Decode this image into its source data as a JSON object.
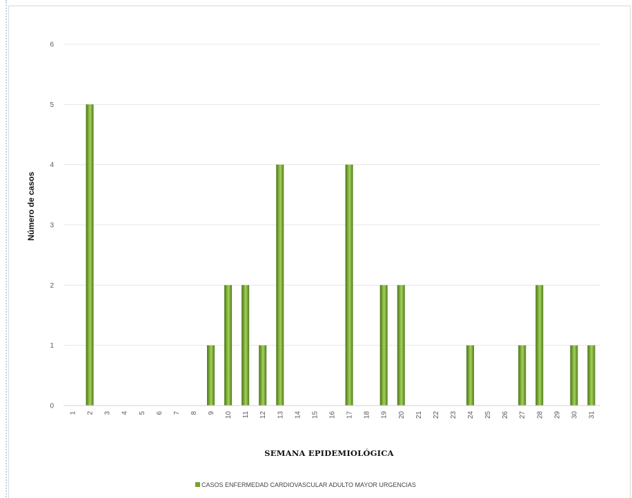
{
  "chart_data": {
    "type": "bar",
    "title": "",
    "xlabel": "SEMANA EPIDEMIOLÓGICA",
    "ylabel": "Número de casos",
    "ylim": [
      0,
      6
    ],
    "yticks": [
      0,
      1,
      2,
      3,
      4,
      5,
      6
    ],
    "grid": true,
    "legend_position": "bottom",
    "categories": [
      "1",
      "2",
      "3",
      "4",
      "5",
      "6",
      "7",
      "8",
      "9",
      "10",
      "11",
      "12",
      "13",
      "14",
      "15",
      "16",
      "17",
      "18",
      "19",
      "20",
      "21",
      "22",
      "23",
      "24",
      "25",
      "26",
      "27",
      "28",
      "29",
      "30",
      "31"
    ],
    "series": [
      {
        "name": "CASOS ENFERMEDAD CARDIOVASCULAR ADULTO MAYOR URGENCIAS",
        "color": "#76a332",
        "values": [
          0,
          5,
          0,
          0,
          0,
          0,
          0,
          0,
          1,
          2,
          2,
          1,
          4,
          0,
          0,
          0,
          4,
          0,
          2,
          2,
          0,
          0,
          0,
          1,
          0,
          0,
          1,
          2,
          0,
          1,
          1
        ]
      }
    ]
  }
}
